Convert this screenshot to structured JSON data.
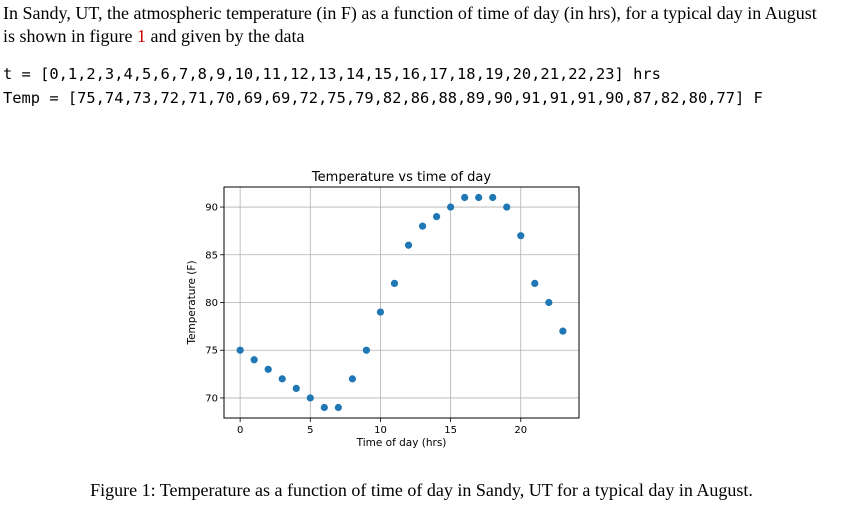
{
  "paragraph": {
    "part1": "In Sandy, UT, the atmospheric temperature (in F) as a function of time of day (in hrs), for a typical day in August is shown in figure ",
    "figure_ref": "1",
    "part2": " and given by the data"
  },
  "code": {
    "line1": "t = [0,1,2,3,4,5,6,7,8,9,10,11,12,13,14,15,16,17,18,19,20,21,22,23] hrs",
    "line2": "Temp = [75,74,73,72,71,70,69,69,72,75,79,82,86,88,89,90,91,91,91,90,87,82,80,77] F"
  },
  "caption": "Figure 1: Temperature as a function of time of day in Sandy, UT for a typical day in August.",
  "colors": {
    "marker": "#1f77b4",
    "grid": "#b0b0b0",
    "reference": "#cc0000"
  },
  "chart_data": {
    "type": "scatter",
    "title": "Temperature vs time of day",
    "xlabel": "Time of day (hrs)",
    "ylabel": "Temperature (F)",
    "x": [
      0,
      1,
      2,
      3,
      4,
      5,
      6,
      7,
      8,
      9,
      10,
      11,
      12,
      13,
      14,
      15,
      16,
      17,
      18,
      19,
      20,
      21,
      22,
      23
    ],
    "y": [
      75,
      74,
      73,
      72,
      71,
      70,
      69,
      69,
      72,
      75,
      79,
      82,
      86,
      88,
      89,
      90,
      91,
      91,
      91,
      90,
      87,
      82,
      80,
      77
    ],
    "xticks": [
      0,
      5,
      10,
      15,
      20
    ],
    "yticks": [
      70,
      75,
      80,
      85,
      90
    ],
    "xlim": [
      -1.15,
      24.15
    ],
    "ylim": [
      67.9,
      92.1
    ],
    "grid": true,
    "legend": "none"
  }
}
